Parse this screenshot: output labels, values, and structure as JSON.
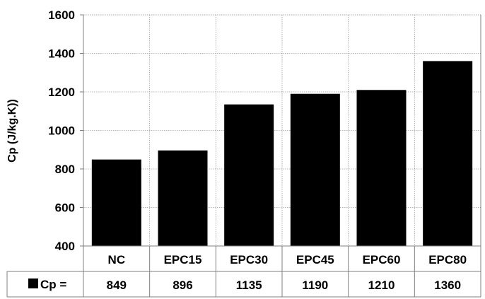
{
  "chart_data": {
    "type": "bar",
    "categories": [
      "NC",
      "EPC15",
      "EPC30",
      "EPC45",
      "EPC60",
      "EPC80"
    ],
    "series": [
      {
        "name": "Cp =",
        "values": [
          849,
          896,
          1135,
          1190,
          1210,
          1360
        ],
        "color": "#000000"
      }
    ],
    "value_labels": [
      "849",
      "896",
      "1135",
      "1190",
      "1210",
      "1360"
    ],
    "ylabel": "Cp (J/kg.K))",
    "ylim": [
      400,
      1600
    ],
    "yticks": [
      400,
      600,
      800,
      1000,
      1200,
      1400,
      1600
    ],
    "grid": true,
    "legend": "data-table"
  }
}
